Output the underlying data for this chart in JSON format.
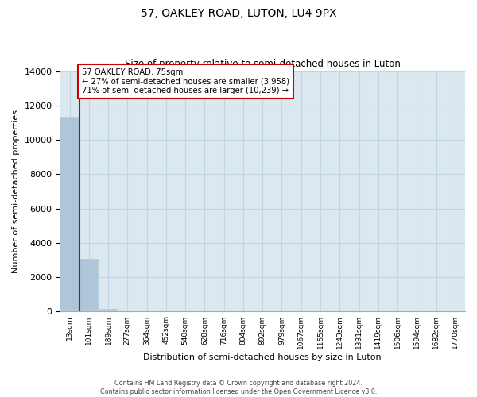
{
  "title": "57, OAKLEY ROAD, LUTON, LU4 9PX",
  "subtitle": "Size of property relative to semi-detached houses in Luton",
  "xlabel": "Distribution of semi-detached houses by size in Luton",
  "ylabel": "Number of semi-detached properties",
  "categories": [
    "13sqm",
    "101sqm",
    "189sqm",
    "277sqm",
    "364sqm",
    "452sqm",
    "540sqm",
    "628sqm",
    "716sqm",
    "804sqm",
    "892sqm",
    "979sqm",
    "1067sqm",
    "1155sqm",
    "1243sqm",
    "1331sqm",
    "1419sqm",
    "1506sqm",
    "1594sqm",
    "1682sqm",
    "1770sqm"
  ],
  "values": [
    11350,
    3050,
    180,
    0,
    0,
    0,
    0,
    0,
    0,
    0,
    0,
    0,
    0,
    0,
    0,
    0,
    0,
    0,
    0,
    0,
    0
  ],
  "bar_color": "#aec6d8",
  "property_label": "57 OAKLEY ROAD: 75sqm",
  "pct_smaller": 27,
  "count_smaller": 3958,
  "pct_larger": 71,
  "count_larger": 10239,
  "annotation_box_color": "#ffffff",
  "annotation_border_color": "#cc0000",
  "red_line_color": "#cc0000",
  "grid_color": "#c0d4e4",
  "bg_color": "#dce8f0",
  "ylim": [
    0,
    14000
  ],
  "yticks": [
    0,
    2000,
    4000,
    6000,
    8000,
    10000,
    12000,
    14000
  ],
  "footer_line1": "Contains HM Land Registry data © Crown copyright and database right 2024.",
  "footer_line2": "Contains public sector information licensed under the Open Government Licence v3.0."
}
